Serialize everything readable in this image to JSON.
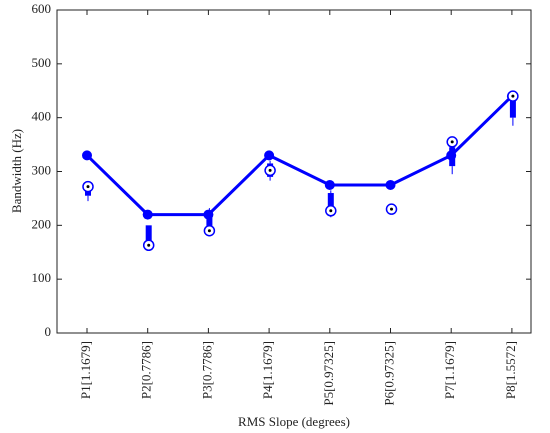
{
  "chart_data": [
    {
      "type": "line",
      "ylabel": "Bandwidth (Hz)",
      "xlabel": "RMS Slope (degrees)",
      "categories": [
        "P1[1.1679]",
        "P2[0.7786]",
        "P3[0.7786]",
        "P4[1.1679]",
        "P5[0.97325]",
        "P6[0.97325]",
        "P7[1.1679]",
        "P8[1.5572]"
      ],
      "series": [
        {
          "color": "#0000ff",
          "values": [
            330,
            220,
            220,
            330,
            275,
            275,
            330,
            440
          ]
        }
      ],
      "ylim": [
        0,
        600
      ],
      "yticks": [
        0,
        100,
        200,
        300,
        400,
        500,
        600
      ]
    },
    {
      "type": "box",
      "color": "#0000ff",
      "ylim": [
        0,
        600
      ],
      "low": [
        245,
        160,
        190,
        283,
        215,
        230,
        295,
        385
      ],
      "q1": [
        255,
        165,
        195,
        290,
        230,
        230,
        310,
        400
      ],
      "median": [
        272,
        163,
        190,
        302,
        227,
        230,
        355,
        440
      ],
      "q3": [
        275,
        200,
        220,
        315,
        260,
        230,
        345,
        435
      ],
      "high": [
        278,
        200,
        232,
        320,
        265,
        230,
        365,
        450
      ]
    }
  ]
}
